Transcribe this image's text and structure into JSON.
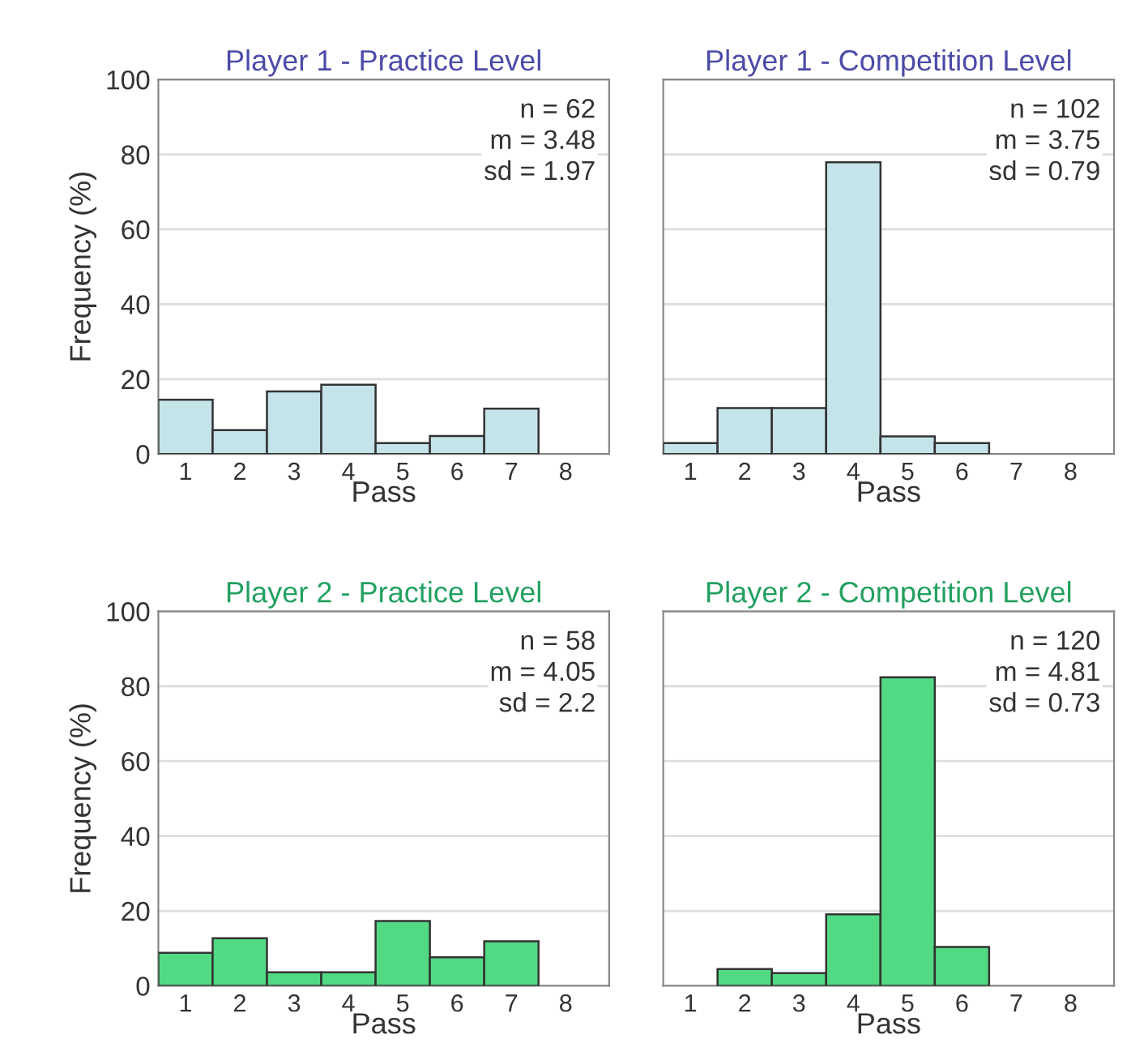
{
  "chart_data": [
    {
      "type": "bar",
      "title": "Player 1 - Practice Level",
      "xlabel": "Pass",
      "ylabel": "Frequency (%)",
      "categories": [
        "1",
        "2",
        "3",
        "4",
        "5",
        "6",
        "7",
        "8"
      ],
      "values": [
        14.5,
        6.4,
        16.7,
        18.5,
        2.9,
        4.8,
        12.1,
        null
      ],
      "color": "#c5e4e9",
      "ylim": [
        0,
        100
      ],
      "yticks": [
        0,
        20,
        40,
        60,
        80,
        100
      ],
      "grid": "y",
      "annotations": [
        "n = 62\nm = 3.48\nsd = 1.97"
      ]
    },
    {
      "type": "bar",
      "title": "Player 1 - Competition Level",
      "xlabel": "Pass",
      "categories": [
        "1",
        "2",
        "3",
        "4",
        "5",
        "6",
        "7",
        "8"
      ],
      "values": [
        2.9,
        12.3,
        12.3,
        77.9,
        4.7,
        2.9,
        null,
        null
      ],
      "color": "#c5e4e9",
      "ylim": [
        0,
        100
      ],
      "yticks": [
        0,
        20,
        40,
        60,
        80,
        100
      ],
      "grid": "y",
      "tick_labels": "x",
      "annotations": [
        "n = 102\nm = 3.75\nsd = 0.79"
      ]
    },
    {
      "type": "bar",
      "title": "Player 2 - Practice Level",
      "xlabel": "Pass",
      "ylabel": "Frequency (%)",
      "categories": [
        "1",
        "2",
        "3",
        "4",
        "5",
        "6",
        "7",
        "8"
      ],
      "values": [
        8.8,
        12.7,
        3.6,
        3.6,
        17.3,
        7.6,
        11.9,
        null
      ],
      "color": "#52d984",
      "ylim": [
        0,
        100
      ],
      "yticks": [
        0,
        20,
        40,
        60,
        80,
        100
      ],
      "grid": "y",
      "annotations": [
        "n = 58\nm = 4.05\nsd = 2.2"
      ]
    },
    {
      "type": "bar",
      "title": "Player 2 - Competition Level",
      "xlabel": "Pass",
      "categories": [
        "1",
        "2",
        "3",
        "4",
        "5",
        "6",
        "7",
        "8"
      ],
      "values": [
        null,
        4.5,
        3.4,
        19.1,
        82.4,
        10.4,
        null,
        null
      ],
      "color": "#52d984",
      "ylim": [
        0,
        100
      ],
      "yticks": [
        0,
        20,
        40,
        60,
        80,
        100
      ],
      "grid": "y",
      "tick_labels": "x",
      "annotations": [
        "n = 120\nm = 4.81\nsd = 0.73"
      ]
    }
  ]
}
